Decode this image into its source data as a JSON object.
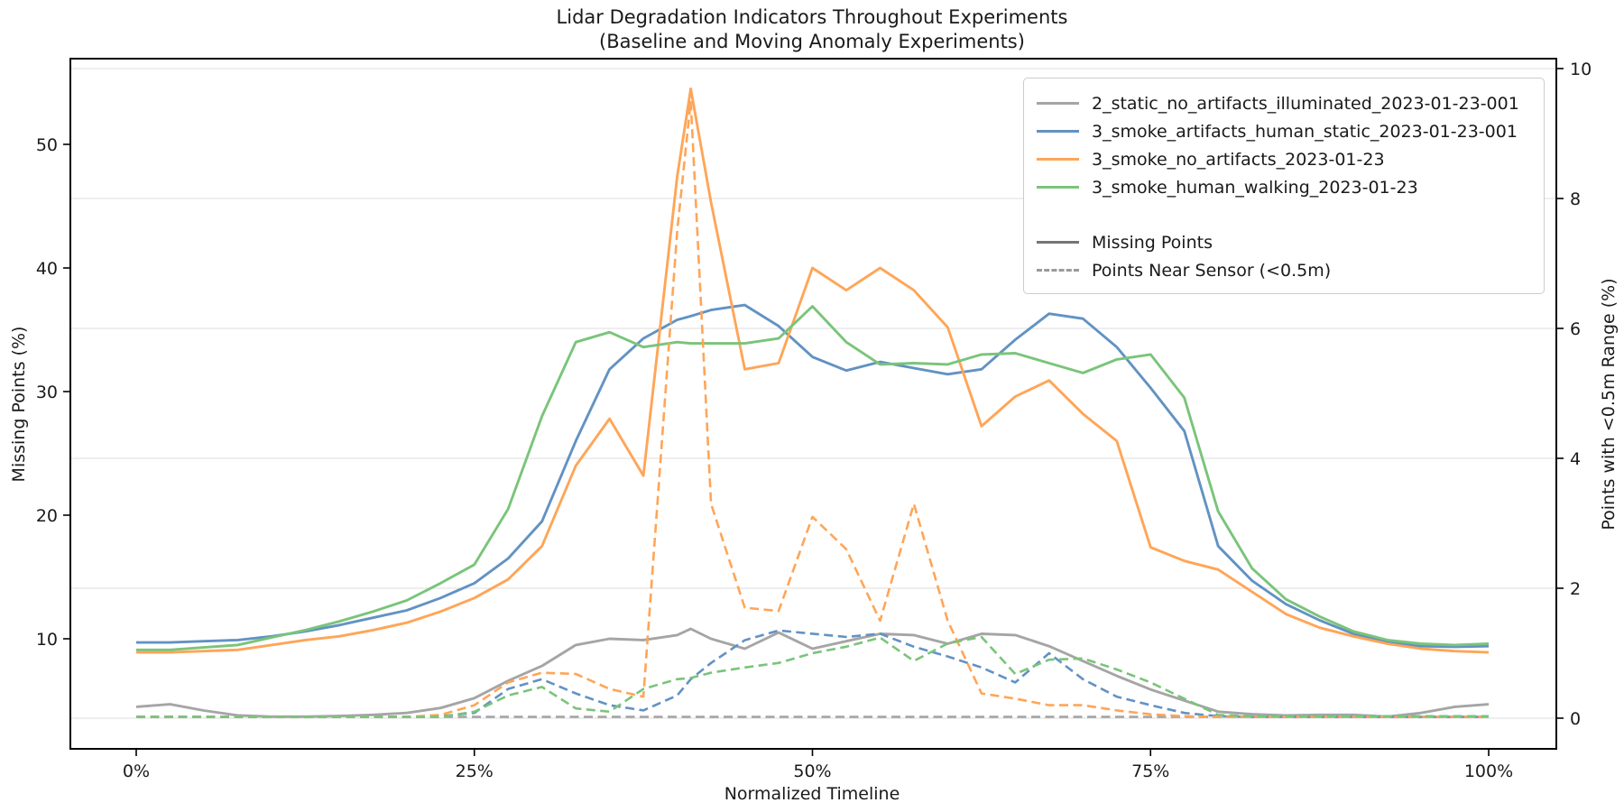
{
  "title": {
    "line1": "Lidar Degradation Indicators Throughout Experiments",
    "line2": "(Baseline and Moving Anomaly Experiments)"
  },
  "axes": {
    "x_label": "Normalized Timeline",
    "x_tick_labels": [
      "0%",
      "25%",
      "50%",
      "75%",
      "100%"
    ],
    "left_label": "Missing Points (%)",
    "left_tick_labels": [
      "10",
      "20",
      "30",
      "40",
      "50"
    ],
    "right_label": "Points with <0.5m Range (%)",
    "right_tick_labels": [
      "0",
      "2",
      "4",
      "6",
      "8",
      "10"
    ]
  },
  "colors": {
    "gray_series": "#a5a5a5",
    "blue_series": "#6292c3",
    "orange_series": "#ffa557",
    "green_series": "#7ac47a",
    "legend_solid_gray": "#757575",
    "legend_dashed_gray": "#9a9a9a",
    "grid": "#e9e9e9",
    "spine": "#000000",
    "text": "#1a1a1a"
  },
  "legend": {
    "entries": [
      {
        "label": "2_static_no_artifacts_illuminated_2023-01-23-001",
        "color": "#a5a5a5",
        "dash": false
      },
      {
        "label": "3_smoke_artifacts_human_static_2023-01-23-001",
        "color": "#6292c3",
        "dash": false
      },
      {
        "label": "3_smoke_no_artifacts_2023-01-23",
        "color": "#ffa557",
        "dash": false
      },
      {
        "label": "3_smoke_human_walking_2023-01-23",
        "color": "#7ac47a",
        "dash": false
      },
      {
        "label": "",
        "color": "",
        "dash": false,
        "spacer": true
      },
      {
        "label": "Missing Points",
        "color": "#757575",
        "dash": false
      },
      {
        "label": "Points Near Sensor (<0.5m)",
        "color": "#9a9a9a",
        "dash": true
      }
    ]
  },
  "chart_data": {
    "type": "line",
    "title": "Lidar Degradation Indicators Throughout Experiments (Baseline and Moving Anomaly Experiments)",
    "xlabel": "Normalized Timeline",
    "x_ticks": [
      0,
      25,
      50,
      75,
      100
    ],
    "x_tick_labels": [
      "0%",
      "25%",
      "50%",
      "75%",
      "100%"
    ],
    "left_axis": {
      "label": "Missing Points (%)",
      "ticks": [
        10,
        20,
        30,
        40,
        50
      ],
      "range": [
        1.1,
        56.9
      ]
    },
    "right_axis": {
      "label": "Points with <0.5m Range (%)",
      "ticks": [
        0,
        2,
        4,
        6,
        8,
        10
      ],
      "range": [
        -0.47,
        10.15
      ]
    },
    "grid": "horizontal-on-right-axis-ticks",
    "legend_position": "upper right",
    "x": [
      0,
      2.5,
      5,
      7.5,
      10,
      12.5,
      15,
      17.5,
      20,
      22.5,
      25,
      27.5,
      30,
      32.5,
      35,
      37.5,
      40,
      41,
      42.5,
      45,
      47.5,
      50,
      52.5,
      55,
      57.5,
      60,
      62.5,
      65,
      67.5,
      70,
      72.5,
      75,
      77.5,
      80,
      82.5,
      85,
      87.5,
      90,
      92.5,
      95,
      97.5,
      100
    ],
    "series": [
      {
        "name": "2_static_no_artifacts_illuminated_2023-01-23-001 — Missing Points",
        "axis": "left",
        "style": "solid",
        "color": "#a5a5a5",
        "values": [
          4.5,
          4.7,
          4.2,
          3.8,
          3.7,
          3.7,
          3.75,
          3.85,
          4.0,
          4.4,
          5.2,
          6.6,
          7.8,
          9.5,
          10.0,
          9.9,
          10.3,
          10.8,
          10.0,
          9.2,
          10.5,
          9.2,
          9.8,
          10.4,
          10.3,
          9.6,
          10.4,
          10.3,
          9.4,
          8.2,
          7.0,
          5.9,
          5.0,
          4.1,
          3.9,
          3.8,
          3.85,
          3.85,
          3.7,
          4.0,
          4.5,
          4.7
        ]
      },
      {
        "name": "3_smoke_artifacts_human_static_2023-01-23-001 — Missing Points",
        "axis": "left",
        "style": "solid",
        "color": "#6292c3",
        "values": [
          9.7,
          9.7,
          9.8,
          9.9,
          10.2,
          10.6,
          11.1,
          11.7,
          12.3,
          13.3,
          14.5,
          16.5,
          19.5,
          26.0,
          31.8,
          34.3,
          35.8,
          36.1,
          36.6,
          37.0,
          35.3,
          32.8,
          31.7,
          32.4,
          31.9,
          31.4,
          31.8,
          34.2,
          36.3,
          35.9,
          33.6,
          30.3,
          26.8,
          17.5,
          14.7,
          12.8,
          11.5,
          10.4,
          9.7,
          9.4,
          9.35,
          9.4
        ]
      },
      {
        "name": "3_smoke_no_artifacts_2023-01-23 — Missing Points",
        "axis": "left",
        "style": "solid",
        "color": "#ffa557",
        "values": [
          8.9,
          8.9,
          9.0,
          9.1,
          9.5,
          9.9,
          10.2,
          10.7,
          11.3,
          12.2,
          13.3,
          14.8,
          17.5,
          24.0,
          27.8,
          23.2,
          47.4,
          54.5,
          45.3,
          31.8,
          32.3,
          40.0,
          38.2,
          40.0,
          38.2,
          35.2,
          27.2,
          29.6,
          30.9,
          28.2,
          26.0,
          17.4,
          16.3,
          15.6,
          13.8,
          12.0,
          10.9,
          10.2,
          9.6,
          9.2,
          9.0,
          8.9
        ]
      },
      {
        "name": "3_smoke_human_walking_2023-01-23 — Missing Points",
        "axis": "left",
        "style": "solid",
        "color": "#7ac47a",
        "values": [
          9.1,
          9.1,
          9.3,
          9.5,
          10.1,
          10.7,
          11.4,
          12.2,
          13.1,
          14.5,
          16.0,
          20.5,
          28.0,
          34.0,
          34.8,
          33.6,
          34.0,
          33.9,
          33.9,
          33.9,
          34.3,
          36.9,
          34.0,
          32.2,
          32.3,
          32.2,
          33.0,
          33.1,
          32.3,
          31.5,
          32.6,
          33.0,
          29.5,
          20.3,
          15.7,
          13.2,
          11.8,
          10.6,
          9.9,
          9.6,
          9.5,
          9.6
        ]
      },
      {
        "name": "2_static_no_artifacts_illuminated_2023-01-23-001 — Points Near Sensor (<0.5m)",
        "axis": "right",
        "style": "dashed",
        "color": "#a5a5a5",
        "values": [
          0.02,
          0.02,
          0.02,
          0.02,
          0.02,
          0.02,
          0.02,
          0.02,
          0.02,
          0.02,
          0.02,
          0.02,
          0.02,
          0.02,
          0.02,
          0.02,
          0.02,
          0.02,
          0.02,
          0.02,
          0.02,
          0.02,
          0.02,
          0.02,
          0.02,
          0.02,
          0.02,
          0.02,
          0.02,
          0.02,
          0.02,
          0.02,
          0.02,
          0.02,
          0.02,
          0.02,
          0.02,
          0.02,
          0.02,
          0.02,
          0.02,
          0.02
        ]
      },
      {
        "name": "3_smoke_artifacts_human_static_2023-01-23-001 — Points Near Sensor (<0.5m)",
        "axis": "right",
        "style": "dashed",
        "color": "#6292c3",
        "values": [
          0.02,
          0.02,
          0.02,
          0.02,
          0.02,
          0.02,
          0.02,
          0.02,
          0.02,
          0.03,
          0.08,
          0.45,
          0.6,
          0.38,
          0.2,
          0.12,
          0.35,
          0.6,
          0.85,
          1.2,
          1.35,
          1.3,
          1.25,
          1.3,
          1.1,
          0.95,
          0.78,
          0.55,
          1.0,
          0.6,
          0.33,
          0.2,
          0.08,
          0.03,
          0.02,
          0.02,
          0.02,
          0.02,
          0.02,
          0.02,
          0.02,
          0.02
        ]
      },
      {
        "name": "3_smoke_no_artifacts_2023-01-23 — Points Near Sensor (<0.5m)",
        "axis": "right",
        "style": "dashed",
        "color": "#ffa557",
        "values": [
          0.02,
          0.02,
          0.02,
          0.02,
          0.02,
          0.02,
          0.02,
          0.02,
          0.02,
          0.05,
          0.2,
          0.55,
          0.7,
          0.68,
          0.45,
          0.33,
          7.5,
          9.5,
          3.3,
          1.7,
          1.65,
          3.1,
          2.6,
          1.5,
          3.3,
          1.5,
          0.38,
          0.3,
          0.2,
          0.2,
          0.12,
          0.06,
          0.03,
          0.02,
          0.02,
          0.02,
          0.02,
          0.02,
          0.02,
          0.02,
          0.02,
          0.02
        ]
      },
      {
        "name": "3_smoke_human_walking_2023-01-23 — Points Near Sensor (<0.5m)",
        "axis": "right",
        "style": "dashed",
        "color": "#7ac47a",
        "values": [
          0.02,
          0.02,
          0.02,
          0.02,
          0.02,
          0.02,
          0.02,
          0.02,
          0.02,
          0.02,
          0.1,
          0.35,
          0.48,
          0.15,
          0.1,
          0.45,
          0.6,
          0.62,
          0.7,
          0.78,
          0.85,
          1.0,
          1.1,
          1.24,
          0.88,
          1.15,
          1.25,
          0.68,
          0.9,
          0.92,
          0.75,
          0.55,
          0.3,
          0.05,
          0.03,
          0.03,
          0.03,
          0.03,
          0.03,
          0.03,
          0.03,
          0.03
        ]
      }
    ]
  }
}
